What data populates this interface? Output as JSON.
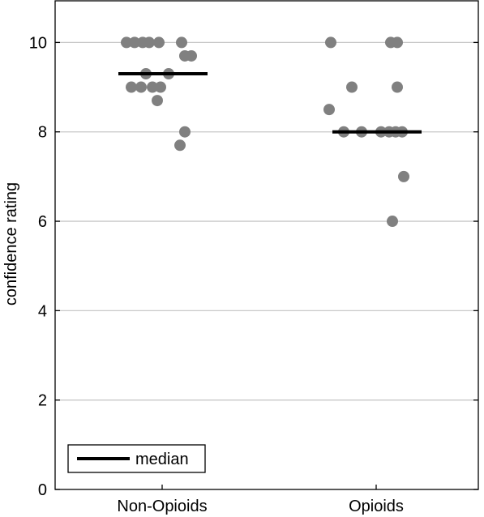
{
  "chart_data": {
    "type": "scatter",
    "ylabel": "confidence rating",
    "ylim": [
      0,
      10.95
    ],
    "yticks": [
      "0",
      "2",
      "4",
      "6",
      "8",
      "10"
    ],
    "categories": [
      "Non-Opioids",
      "Opioids"
    ],
    "grid": "horizontal",
    "legend": {
      "label": "median",
      "placement": "bottom-left"
    },
    "series": [
      {
        "category": "Non-Opioids",
        "median": 9.3,
        "points": [
          {
            "offset": -0.22,
            "y": 10
          },
          {
            "offset": -0.17,
            "y": 10
          },
          {
            "offset": -0.12,
            "y": 10
          },
          {
            "offset": -0.08,
            "y": 10
          },
          {
            "offset": -0.02,
            "y": 10
          },
          {
            "offset": 0.12,
            "y": 10
          },
          {
            "offset": 0.14,
            "y": 9.7
          },
          {
            "offset": 0.18,
            "y": 9.7
          },
          {
            "offset": -0.1,
            "y": 9.3
          },
          {
            "offset": 0.04,
            "y": 9.3
          },
          {
            "offset": -0.19,
            "y": 9.0
          },
          {
            "offset": -0.13,
            "y": 9.0
          },
          {
            "offset": -0.06,
            "y": 9.0
          },
          {
            "offset": -0.01,
            "y": 9.0
          },
          {
            "offset": -0.03,
            "y": 8.7
          },
          {
            "offset": 0.14,
            "y": 8.0
          },
          {
            "offset": 0.11,
            "y": 7.7
          }
        ]
      },
      {
        "category": "Opioids",
        "median": 8.0,
        "points": [
          {
            "offset": -0.28,
            "y": 10
          },
          {
            "offset": 0.09,
            "y": 10
          },
          {
            "offset": 0.13,
            "y": 10
          },
          {
            "offset": -0.15,
            "y": 9.0
          },
          {
            "offset": 0.13,
            "y": 9.0
          },
          {
            "offset": -0.29,
            "y": 8.5
          },
          {
            "offset": -0.2,
            "y": 8.0
          },
          {
            "offset": -0.09,
            "y": 8.0
          },
          {
            "offset": 0.03,
            "y": 8.0
          },
          {
            "offset": 0.08,
            "y": 8.0
          },
          {
            "offset": 0.12,
            "y": 8.0
          },
          {
            "offset": 0.16,
            "y": 8.0
          },
          {
            "offset": 0.17,
            "y": 7.0
          },
          {
            "offset": 0.1,
            "y": 6.0
          }
        ]
      }
    ],
    "colors": {
      "point": "#808080",
      "median": "#000000",
      "grid": "#c8c8c8",
      "axis": "#000000"
    }
  }
}
